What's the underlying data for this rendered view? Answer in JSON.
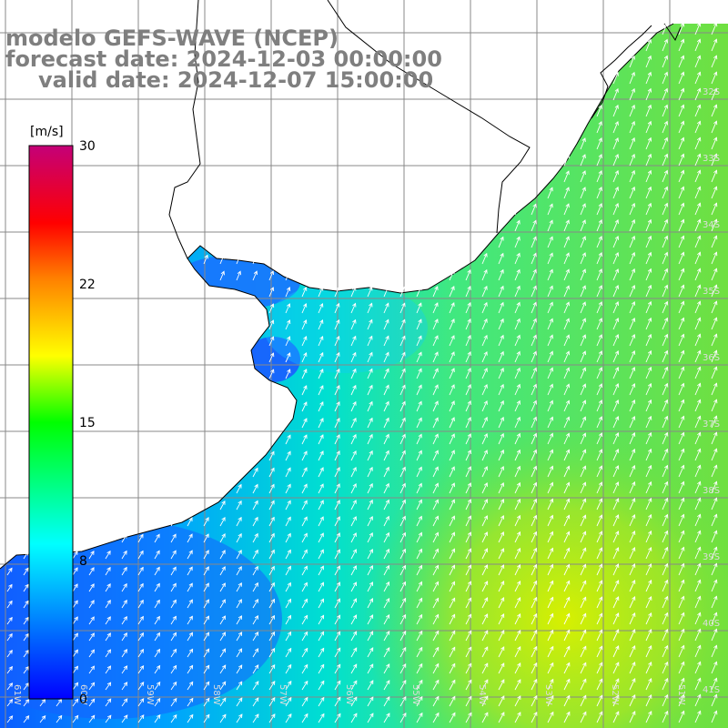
{
  "title": {
    "line1": "modelo GEFS-WAVE (NCEP)",
    "line2": "forecast date: 2024-12-03 00:00:00",
    "line3": "valid date: 2024-12-07 15:00:00"
  },
  "colorbar": {
    "units": "[m/s]",
    "ticks": [
      "30",
      "22",
      "15",
      "8",
      "0"
    ],
    "colors": [
      "#0000ff",
      "#00a8ff",
      "#00ffff",
      "#00ff00",
      "#ffff00",
      "#ff8000",
      "#ff0000",
      "#cc0080"
    ]
  },
  "lat_labels": [
    "32S",
    "33S",
    "34S",
    "35S",
    "36S",
    "37S",
    "38S",
    "39S",
    "40S",
    "41S"
  ],
  "lon_labels": [
    "61W",
    "60W",
    "59W",
    "58W",
    "57W",
    "56W",
    "55W",
    "54W",
    "53W",
    "52W",
    "51W"
  ],
  "wind_field": {
    "units": "m/s",
    "description_direction": "winds mostly from SW/S (arrows pointing NE/N)",
    "speed_regions": [
      {
        "area": "inner Rio de la Plata / near coast south of 38S",
        "speed": 4
      },
      {
        "area": "shelf west of 55W",
        "speed": 8
      },
      {
        "area": "offshore 52-55W, 33-38S",
        "speed": 12
      },
      {
        "area": "southeast corner near 40S 52W",
        "speed": 15
      }
    ]
  },
  "map_colors": {
    "land": "#ffffff",
    "grid": "#888888",
    "coast": "#000000",
    "arrow": "#ffffff"
  }
}
